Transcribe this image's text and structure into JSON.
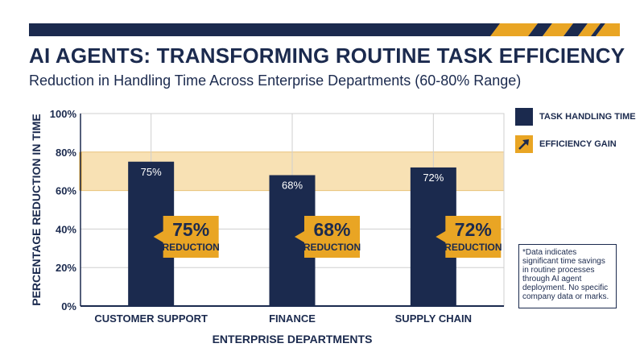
{
  "title": "AI AGENTS: TRANSFORMING ROUTINE TASK EFFICIENCY",
  "subtitle": "Reduction in Handling Time Across Enterprise Departments (60-80% Range)",
  "colors": {
    "navy": "#1b2a4e",
    "gold": "#e9a524",
    "band": "#f8e1b4",
    "grid": "#cfcfcf"
  },
  "legend": [
    {
      "label": "TASK HANDLING TIME",
      "icon": "navy-square-swatch"
    },
    {
      "label": "EFFICIENCY GAIN",
      "icon": "arrow-up-right-icon"
    }
  ],
  "note": "*Data indicates significant time savings in routine processes through AI agent deployment. No specific company data or marks.",
  "chart_data": {
    "type": "bar",
    "categories": [
      "CUSTOMER SUPPORT",
      "FINANCE",
      "SUPPLY CHAIN"
    ],
    "values": [
      75,
      68,
      72
    ],
    "bar_labels": [
      "75%",
      "68%",
      "72%"
    ],
    "callouts": [
      {
        "value": "75%",
        "label": "REDUCTION"
      },
      {
        "value": "68%",
        "label": "REDUCTION"
      },
      {
        "value": "72%",
        "label": "REDUCTION"
      }
    ],
    "highlight_band": [
      60,
      80
    ],
    "ylim": [
      0,
      100
    ],
    "yticks": [
      "0%",
      "20%",
      "40%",
      "60%",
      "80%",
      "100%"
    ],
    "xlabel": "ENTERPRISE DEPARTMENTS",
    "ylabel": "PERCENTAGE REDUCTION IN TIME",
    "grid": true
  }
}
